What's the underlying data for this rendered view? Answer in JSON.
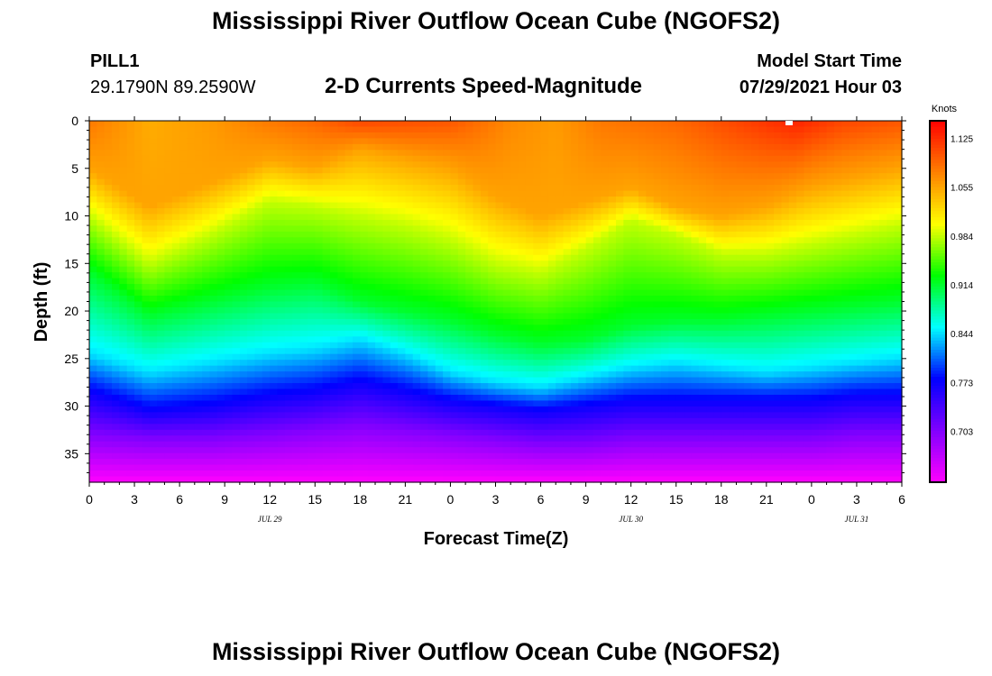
{
  "header": {
    "title": "Mississippi River Outflow Ocean Cube (NGOFS2)",
    "station_id": "PILL1",
    "station_coords": "29.1790N  89.2590W",
    "subtitle": "2-D Currents Speed-Magnitude",
    "model_start_label": "Model Start Time",
    "model_start_value": "07/29/2021 Hour 03"
  },
  "footer": {
    "title": "Mississippi River Outflow Ocean Cube (NGOFS2)"
  },
  "chart_data": {
    "type": "heatmap",
    "title": "2-D Currents Speed-Magnitude",
    "xlabel": "Forecast Time(Z)",
    "ylabel": "Depth (ft)",
    "x_range_hours": [
      0,
      54
    ],
    "x_tick_labels": [
      "0",
      "3",
      "6",
      "9",
      "12",
      "15",
      "18",
      "21",
      "0",
      "3",
      "6",
      "9",
      "12",
      "15",
      "18",
      "21",
      "0",
      "3",
      "6"
    ],
    "date_labels": [
      {
        "text": "JUL 29",
        "hour": 12
      },
      {
        "text": "JUL 30",
        "hour": 36
      },
      {
        "text": "JUL 31",
        "hour": 51
      }
    ],
    "y_range_ft": [
      0,
      38
    ],
    "y_ticks": [
      0,
      5,
      10,
      15,
      20,
      25,
      30,
      35
    ],
    "colorbar": {
      "unit": "Knots",
      "range": [
        0.63,
        1.15
      ],
      "ticks": [
        "1.125",
        "1.055",
        "0.984",
        "0.914",
        "0.844",
        "0.773",
        "0.703"
      ],
      "tick_values": [
        1.125,
        1.055,
        0.984,
        0.914,
        0.844,
        0.773,
        0.703
      ],
      "colors": [
        "#ff00ff",
        "#8000ff",
        "#0000ff",
        "#00ffff",
        "#00ff00",
        "#ffff00",
        "#ff8000",
        "#ff0000"
      ]
    },
    "surface_speed_by_hour": [
      [
        0,
        1.08
      ],
      [
        4,
        1.05
      ],
      [
        8,
        1.06
      ],
      [
        12,
        1.08
      ],
      [
        15,
        1.09
      ],
      [
        18,
        1.11
      ],
      [
        24,
        1.1
      ],
      [
        28,
        1.07
      ],
      [
        31,
        1.06
      ],
      [
        34,
        1.08
      ],
      [
        39,
        1.09
      ],
      [
        43,
        1.11
      ],
      [
        47,
        1.13
      ],
      [
        50,
        1.11
      ],
      [
        54,
        1.1
      ]
    ],
    "isolines_depth_ft": {
      "speed_1.055": [
        [
          0,
          5
        ],
        [
          4,
          9
        ],
        [
          8,
          6.5
        ],
        [
          12,
          4
        ],
        [
          15,
          5
        ],
        [
          18,
          3
        ],
        [
          21,
          4
        ],
        [
          24,
          5
        ],
        [
          27,
          8
        ],
        [
          30,
          10
        ],
        [
          33,
          8.5
        ],
        [
          36,
          7
        ],
        [
          39,
          9
        ],
        [
          42,
          10
        ],
        [
          45,
          9
        ],
        [
          48,
          7
        ],
        [
          51,
          6
        ],
        [
          54,
          5
        ]
      ],
      "speed_0.984": [
        [
          0,
          10
        ],
        [
          4,
          15
        ],
        [
          8,
          12
        ],
        [
          12,
          8.5
        ],
        [
          15,
          9
        ],
        [
          18,
          10
        ],
        [
          21,
          11
        ],
        [
          24,
          12.5
        ],
        [
          27,
          15
        ],
        [
          30,
          16
        ],
        [
          33,
          13.5
        ],
        [
          36,
          10.5
        ],
        [
          39,
          12
        ],
        [
          42,
          14
        ],
        [
          45,
          14
        ],
        [
          48,
          13
        ],
        [
          51,
          12
        ],
        [
          54,
          11
        ]
      ],
      "speed_0.914": [
        [
          0,
          16
        ],
        [
          4,
          20.5
        ],
        [
          8,
          19
        ],
        [
          12,
          17.5
        ],
        [
          15,
          17
        ],
        [
          18,
          19
        ],
        [
          21,
          20
        ],
        [
          24,
          21
        ],
        [
          27,
          22.5
        ],
        [
          30,
          23.5
        ],
        [
          33,
          23
        ],
        [
          36,
          21.5
        ],
        [
          39,
          21
        ],
        [
          42,
          21
        ],
        [
          45,
          20.5
        ],
        [
          48,
          20
        ],
        [
          51,
          19.5
        ],
        [
          54,
          19
        ]
      ],
      "speed_0.844": [
        [
          0,
          24.5
        ],
        [
          4,
          26.5
        ],
        [
          8,
          25.5
        ],
        [
          12,
          24.5
        ],
        [
          15,
          24
        ],
        [
          18,
          23
        ],
        [
          21,
          24.5
        ],
        [
          24,
          26.5
        ],
        [
          27,
          27.5
        ],
        [
          30,
          28
        ],
        [
          33,
          27
        ],
        [
          36,
          26
        ],
        [
          39,
          25.5
        ],
        [
          42,
          26
        ],
        [
          45,
          26.5
        ],
        [
          48,
          26
        ],
        [
          51,
          25.5
        ],
        [
          54,
          25
        ]
      ],
      "speed_0.773": [
        [
          0,
          28.5
        ],
        [
          4,
          30.5
        ],
        [
          8,
          30
        ],
        [
          12,
          29
        ],
        [
          15,
          28.5
        ],
        [
          18,
          27.5
        ],
        [
          21,
          28.5
        ],
        [
          24,
          29.5
        ],
        [
          27,
          30
        ],
        [
          30,
          30.5
        ],
        [
          33,
          30
        ],
        [
          36,
          29.5
        ],
        [
          39,
          29.5
        ],
        [
          42,
          29.5
        ],
        [
          45,
          29.5
        ],
        [
          48,
          29.5
        ],
        [
          51,
          29
        ],
        [
          54,
          29
        ]
      ],
      "speed_0.703": [
        [
          0,
          33
        ],
        [
          4,
          33.5
        ],
        [
          8,
          33.5
        ],
        [
          12,
          33
        ],
        [
          15,
          32.5
        ],
        [
          18,
          32
        ],
        [
          21,
          32.5
        ],
        [
          24,
          33
        ],
        [
          27,
          33.5
        ],
        [
          30,
          34
        ],
        [
          33,
          34
        ],
        [
          36,
          33.5
        ],
        [
          39,
          33.5
        ],
        [
          42,
          33.5
        ],
        [
          45,
          33.5
        ],
        [
          48,
          33.5
        ],
        [
          51,
          33
        ],
        [
          54,
          33
        ]
      ]
    },
    "bottom_speed": 0.63
  }
}
